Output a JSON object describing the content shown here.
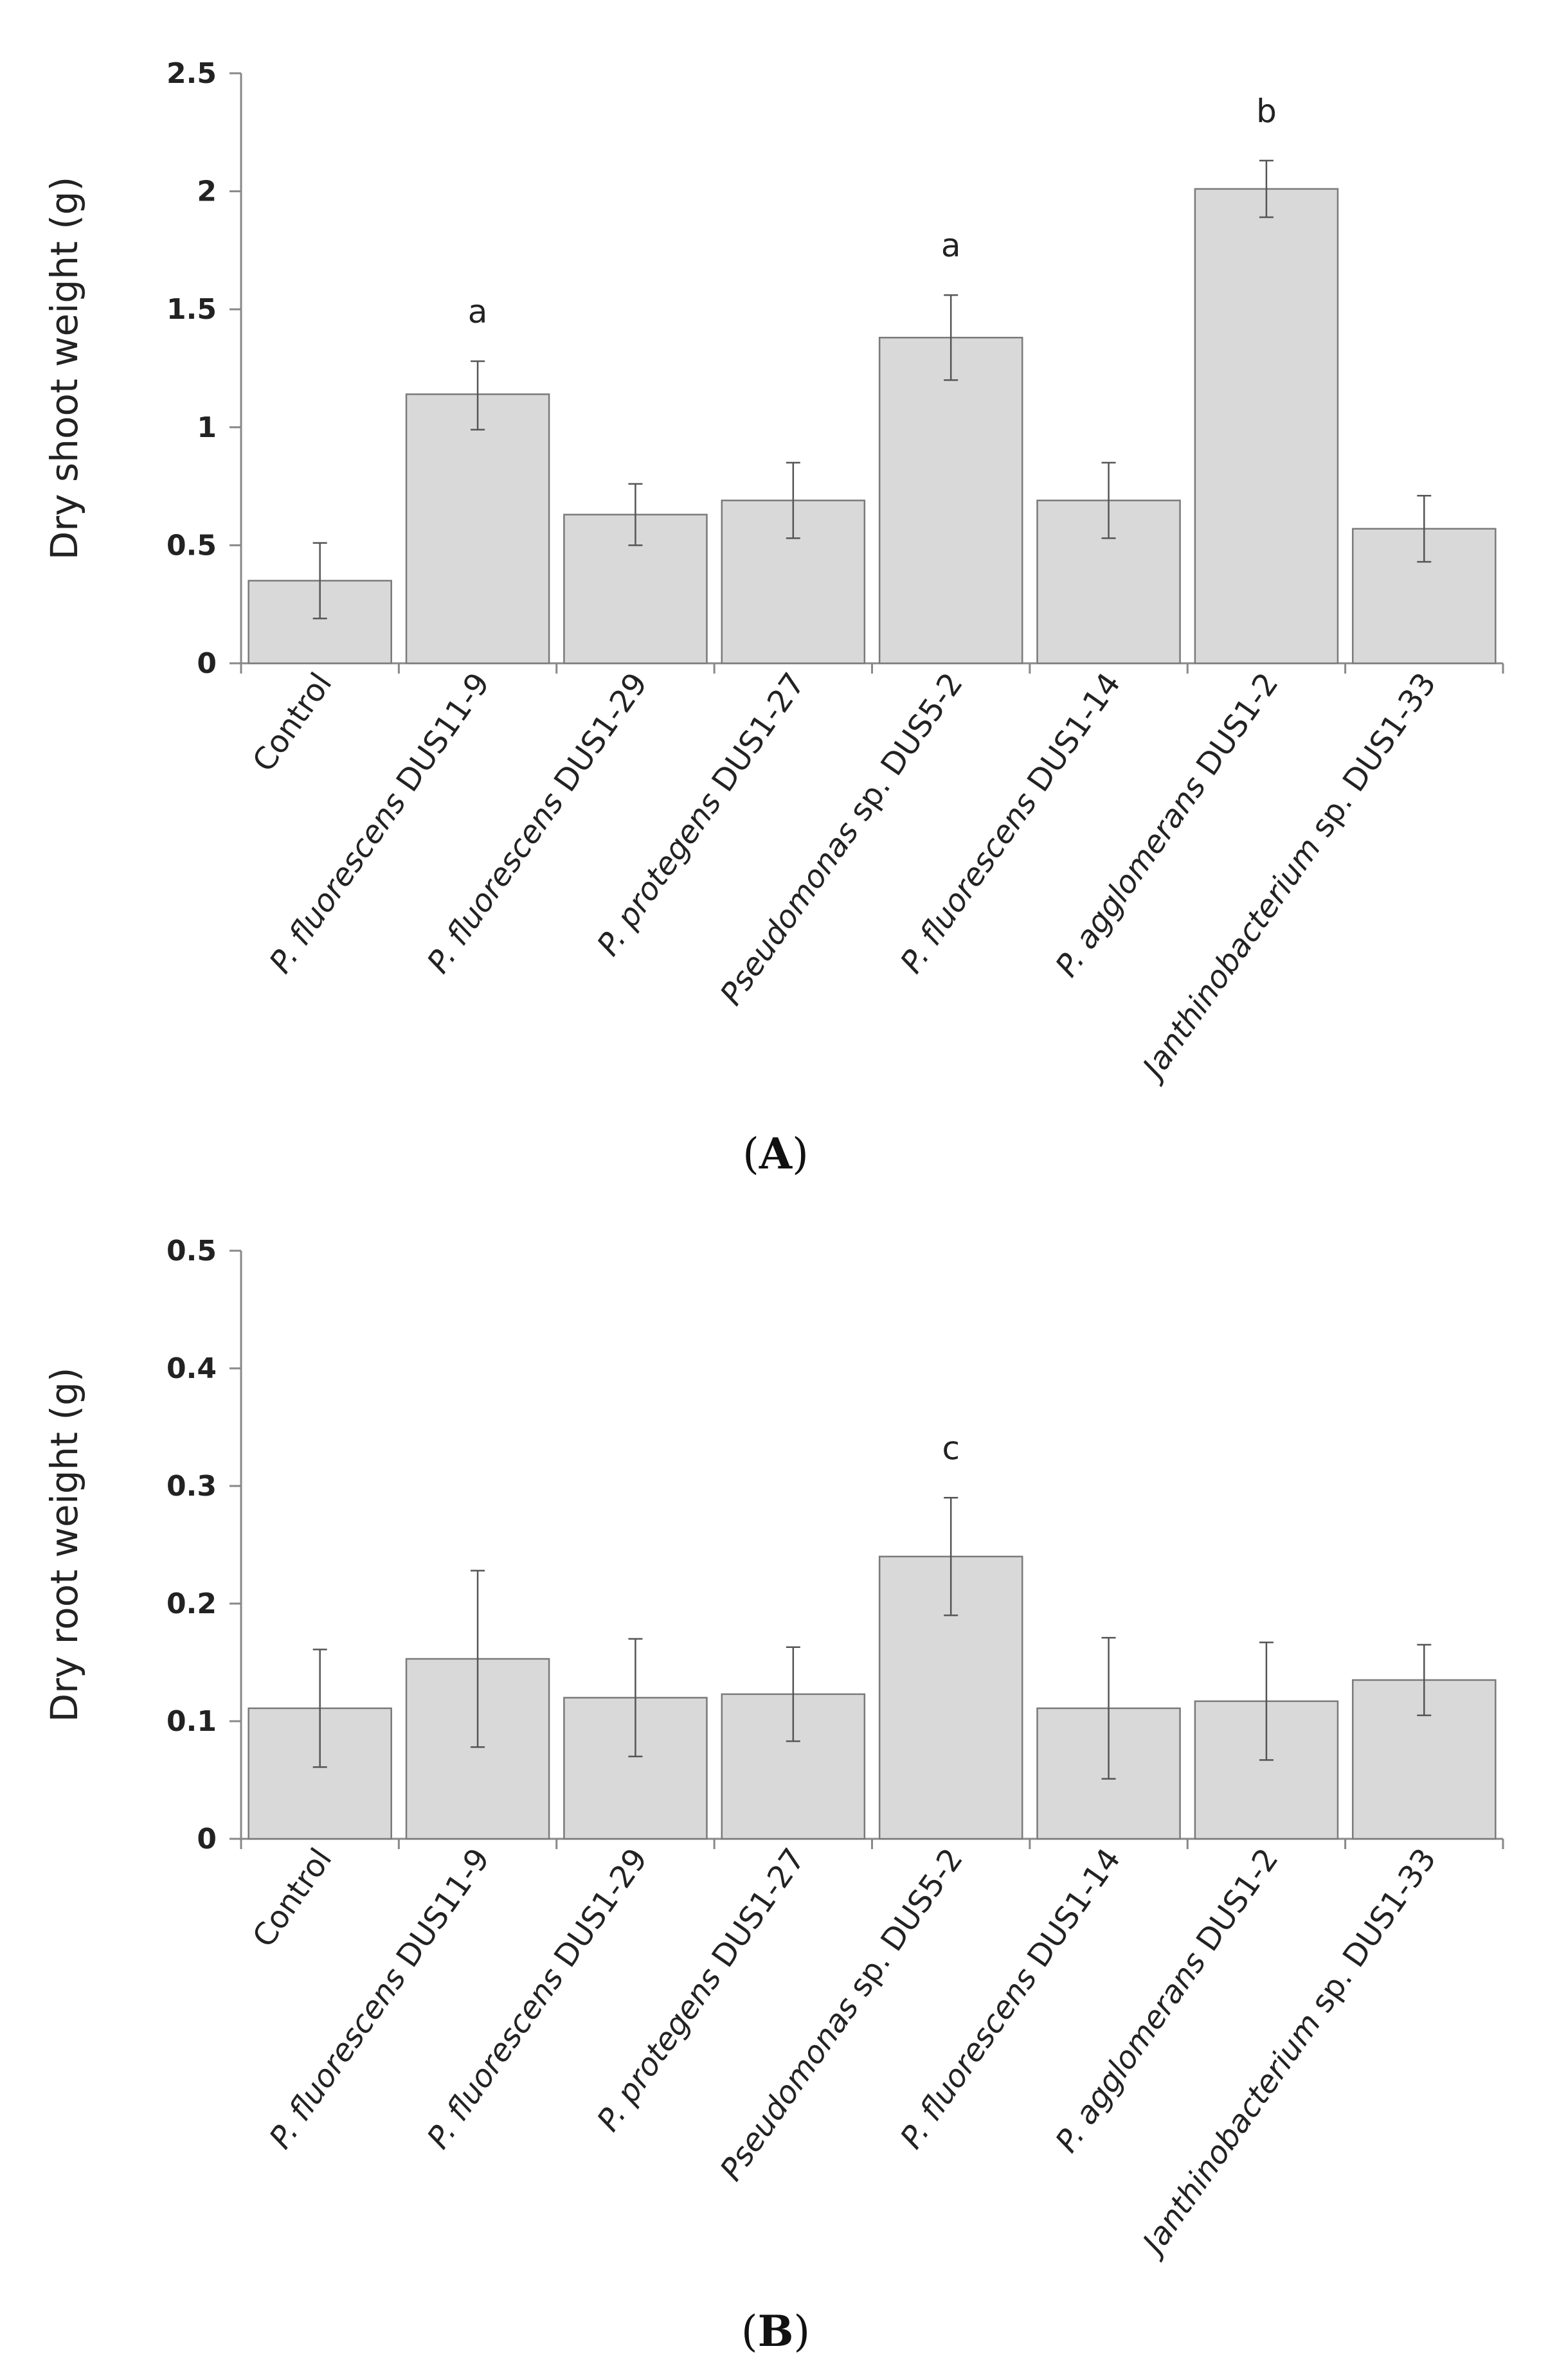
{
  "chart_data": [
    {
      "type": "bar",
      "panel": "A",
      "categories": [
        [
          "Control"
        ],
        [
          "P. fluorescens",
          " DUS11-9"
        ],
        [
          "P. fluorescens",
          " DUS1-29"
        ],
        [
          "P. protegens",
          " DUS1-27"
        ],
        [
          "Pseudomonas",
          " sp. DUS5-2"
        ],
        [
          "P. fluorescens",
          " DUS1-14"
        ],
        [
          "P. agglomerans",
          " DUS1-2"
        ],
        [
          "Janthinobacterium",
          " sp. DUS1-33"
        ]
      ],
      "values": [
        0.35,
        1.14,
        0.63,
        0.69,
        1.38,
        0.69,
        2.01,
        0.57
      ],
      "error_low": [
        0.19,
        0.99,
        0.5,
        0.53,
        1.2,
        0.53,
        1.89,
        0.43
      ],
      "error_high": [
        0.51,
        1.28,
        0.76,
        0.85,
        1.56,
        0.85,
        2.13,
        0.71
      ],
      "significance": [
        "",
        "a",
        "",
        "",
        "a",
        "",
        "b",
        ""
      ],
      "ylabel": "Dry shoot weight (g)",
      "ylim": [
        0,
        2.5
      ],
      "yticks": [
        "0",
        "0.5",
        "1",
        "1.5",
        "2",
        "2.5"
      ],
      "label": "A"
    },
    {
      "type": "bar",
      "panel": "B",
      "categories": [
        [
          "Control"
        ],
        [
          "P. fluorescens",
          " DUS11-9"
        ],
        [
          "P. fluorescens",
          " DUS1-29"
        ],
        [
          "P. protegens",
          " DUS1-27"
        ],
        [
          "Pseudomonas",
          " sp. DUS5-2"
        ],
        [
          "P. fluorescens",
          " DUS1-14"
        ],
        [
          "P. agglomerans",
          " DUS1-2"
        ],
        [
          "Janthinobacterium",
          " sp. DUS1-33"
        ]
      ],
      "values": [
        0.111,
        0.153,
        0.12,
        0.123,
        0.24,
        0.111,
        0.117,
        0.135
      ],
      "error_low": [
        0.061,
        0.078,
        0.07,
        0.083,
        0.19,
        0.051,
        0.067,
        0.105
      ],
      "error_high": [
        0.161,
        0.228,
        0.17,
        0.163,
        0.29,
        0.171,
        0.167,
        0.165
      ],
      "significance": [
        "",
        "",
        "",
        "",
        "c",
        "",
        "",
        ""
      ],
      "ylabel": "Dry root weight (g)",
      "ylim": [
        0,
        0.5
      ],
      "yticks": [
        "0",
        "0.1",
        "0.2",
        "0.3",
        "0.4",
        "0.5"
      ],
      "label": "B"
    }
  ]
}
